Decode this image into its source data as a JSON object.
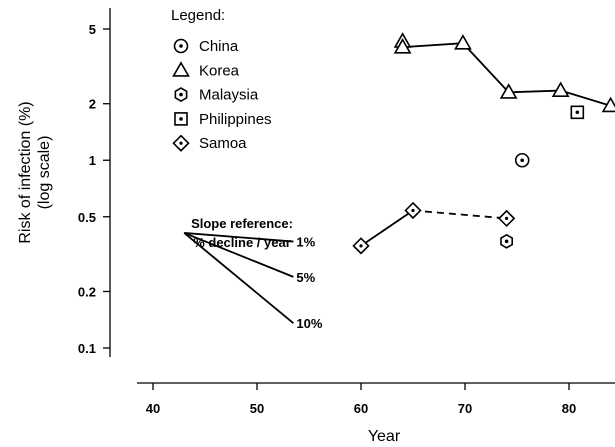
{
  "chart_data": {
    "type": "line",
    "ylabel": [
      "Risk of infection (%)",
      "(log scale)"
    ],
    "xlabel": "Year",
    "yscale": "log",
    "xlim": [
      38,
      84
    ],
    "ylim": [
      0.07,
      6
    ],
    "x_ticks": [
      40,
      50,
      60,
      70,
      80
    ],
    "y_ticks": [
      {
        "value": 0.1,
        "label": "0.1"
      },
      {
        "value": 0.2,
        "label": "0.2"
      },
      {
        "value": 0.5,
        "label": "0.5"
      },
      {
        "value": 1,
        "label": "1"
      },
      {
        "value": 2,
        "label": "2"
      },
      {
        "value": 5,
        "label": "5"
      }
    ],
    "legend": {
      "title": "Legend:",
      "placement": "top-center",
      "entries": [
        {
          "name": "China",
          "marker": "circle-dot"
        },
        {
          "name": "Korea",
          "marker": "triangle"
        },
        {
          "name": "Malaysia",
          "marker": "hexagon-dot"
        },
        {
          "name": "Philippines",
          "marker": "square-dot"
        },
        {
          "name": "Samoa",
          "marker": "diamond"
        }
      ]
    },
    "series": [
      {
        "name": "China",
        "marker": "circle-dot",
        "line": "none",
        "points": [
          {
            "x": 75.5,
            "y": 1.0
          }
        ]
      },
      {
        "name": "Korea",
        "marker": "triangle",
        "line": "solid",
        "points": [
          {
            "x": 64,
            "y": 4.3
          },
          {
            "x": 64,
            "y": 4.0
          },
          {
            "x": 69.8,
            "y": 4.2
          },
          {
            "x": 74.2,
            "y": 2.3
          },
          {
            "x": 79.2,
            "y": 2.35
          },
          {
            "x": 84,
            "y": 1.95
          }
        ]
      },
      {
        "name": "Malaysia",
        "marker": "hexagon-dot",
        "line": "none",
        "points": [
          {
            "x": 74,
            "y": 0.37
          }
        ]
      },
      {
        "name": "Philippines",
        "marker": "square-dot",
        "line": "none",
        "points": [
          {
            "x": 80.8,
            "y": 1.8
          }
        ]
      },
      {
        "name": "Samoa",
        "marker": "diamond",
        "line": "mixed",
        "points": [
          {
            "x": 60,
            "y": 0.35
          },
          {
            "x": 65,
            "y": 0.54
          },
          {
            "x": 74,
            "y": 0.49
          }
        ],
        "segment_styles": [
          "solid",
          "dashed"
        ]
      }
    ],
    "slope_reference": {
      "title_lines": [
        "Slope reference:",
        "% decline / year"
      ],
      "origin": {
        "x": 43,
        "y": 0.41
      },
      "end_x": 53.5,
      "lines": [
        {
          "label": "1%",
          "rate": 0.01
        },
        {
          "label": "5%",
          "rate": 0.05
        },
        {
          "label": "10%",
          "rate": 0.1
        }
      ]
    },
    "grid": false
  }
}
